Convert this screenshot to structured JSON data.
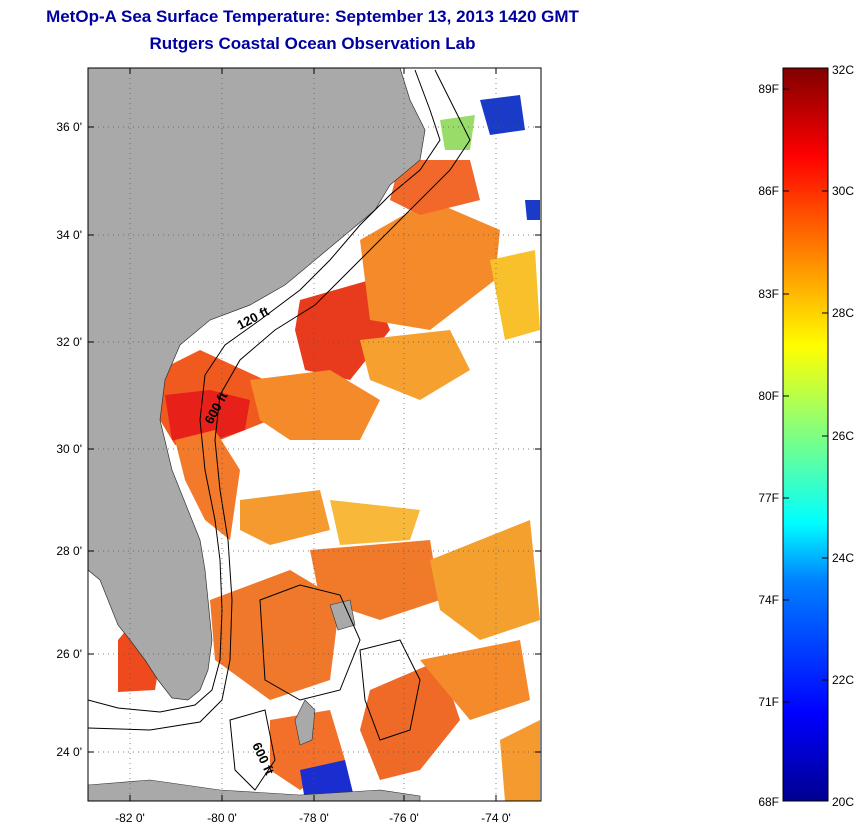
{
  "header": {
    "title_line1": "MetOp-A Sea Surface Temperature:  September 13, 2013 1420 GMT",
    "title_line2": "Rutgers Coastal Ocean Observation Lab"
  },
  "map": {
    "lat_labels": [
      "36 0'",
      "34 0'",
      "32 0'",
      "30 0'",
      "28 0'",
      "26 0'",
      "24 0'"
    ],
    "lon_labels": [
      "-82 0'",
      "-80 0'",
      "-78 0'",
      "-76 0'",
      "-74 0'"
    ],
    "contour_labels": [
      "120 ft",
      "600 ft",
      "600 ft"
    ],
    "land_color": "#a9a9a9",
    "cloud_color": "#ffffff"
  },
  "colorbar": {
    "celsius_labels": [
      "32C",
      "30C",
      "28C",
      "26C",
      "24C",
      "22C",
      "20C"
    ],
    "fahrenheit_labels": [
      "89F",
      "86F",
      "83F",
      "80F",
      "77F",
      "74F",
      "71F",
      "68F"
    ],
    "colormap": [
      "#00008f",
      "#0000ff",
      "#0080ff",
      "#00ffff",
      "#80ff80",
      "#ffff00",
      "#ff8000",
      "#ff0000",
      "#800000"
    ]
  }
}
